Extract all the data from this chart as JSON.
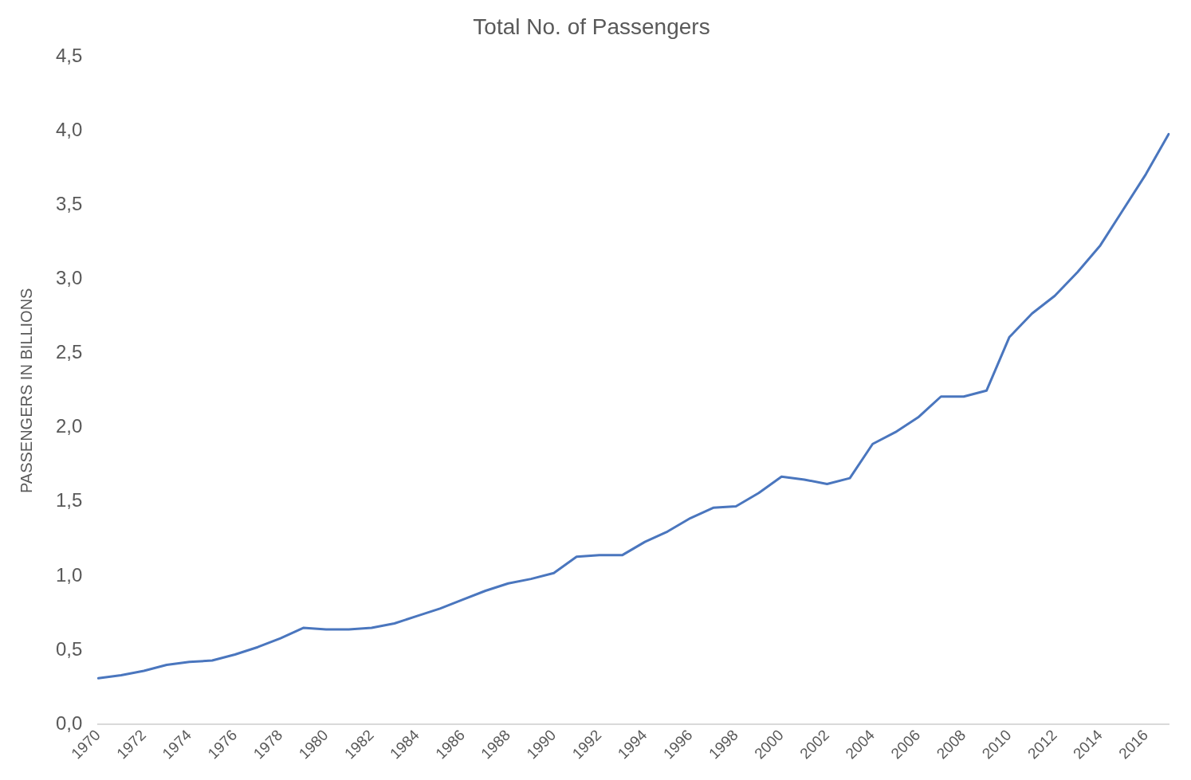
{
  "chart_data": {
    "type": "line",
    "title": "Total No. of Passengers",
    "ylabel": "PASSENGERS IN BILLIONS",
    "categories": [
      "1970",
      null,
      "1972",
      null,
      "1974",
      null,
      "1976",
      null,
      "1978",
      null,
      "1980",
      null,
      "1982",
      null,
      "1984",
      null,
      "1986",
      null,
      "1988",
      null,
      "1990",
      null,
      "1992",
      null,
      "1994",
      null,
      "1996",
      null,
      "1998",
      null,
      "2000",
      null,
      "2002",
      null,
      "2004",
      null,
      "2006",
      null,
      "2008",
      null,
      "2010",
      null,
      "2012",
      null,
      "2014",
      null,
      "2016",
      null
    ],
    "series": [
      {
        "color": "#4a76be",
        "values": [
          0.31,
          0.33,
          0.36,
          0.4,
          0.42,
          0.43,
          0.47,
          0.52,
          0.58,
          0.65,
          0.64,
          0.64,
          0.65,
          0.68,
          0.73,
          0.78,
          0.84,
          0.9,
          0.95,
          0.98,
          1.02,
          1.13,
          1.14,
          1.14,
          1.23,
          1.3,
          1.39,
          1.46,
          1.47,
          1.56,
          1.67,
          1.65,
          1.62,
          1.66,
          1.89,
          1.97,
          2.07,
          2.21,
          2.21,
          2.25,
          2.61,
          2.77,
          2.89,
          3.05,
          3.23,
          3.47,
          3.71,
          3.98
        ]
      }
    ],
    "ylim": [
      0,
      4.5
    ],
    "yticks": [
      {
        "value": 0,
        "label": "0,0"
      },
      {
        "value": 0.5,
        "label": "0,5"
      },
      {
        "value": 1,
        "label": "1,0"
      },
      {
        "value": 1.5,
        "label": "1,5"
      },
      {
        "value": 2,
        "label": "2,0"
      },
      {
        "value": 2.5,
        "label": "2,5"
      },
      {
        "value": 3,
        "label": "3,0"
      },
      {
        "value": 3.5,
        "label": "3,5"
      },
      {
        "value": 4,
        "label": "4,0"
      },
      {
        "value": 4.5,
        "label": "4,5"
      }
    ],
    "grid": false,
    "legend": false,
    "marker": "none",
    "line_style": "solid"
  }
}
